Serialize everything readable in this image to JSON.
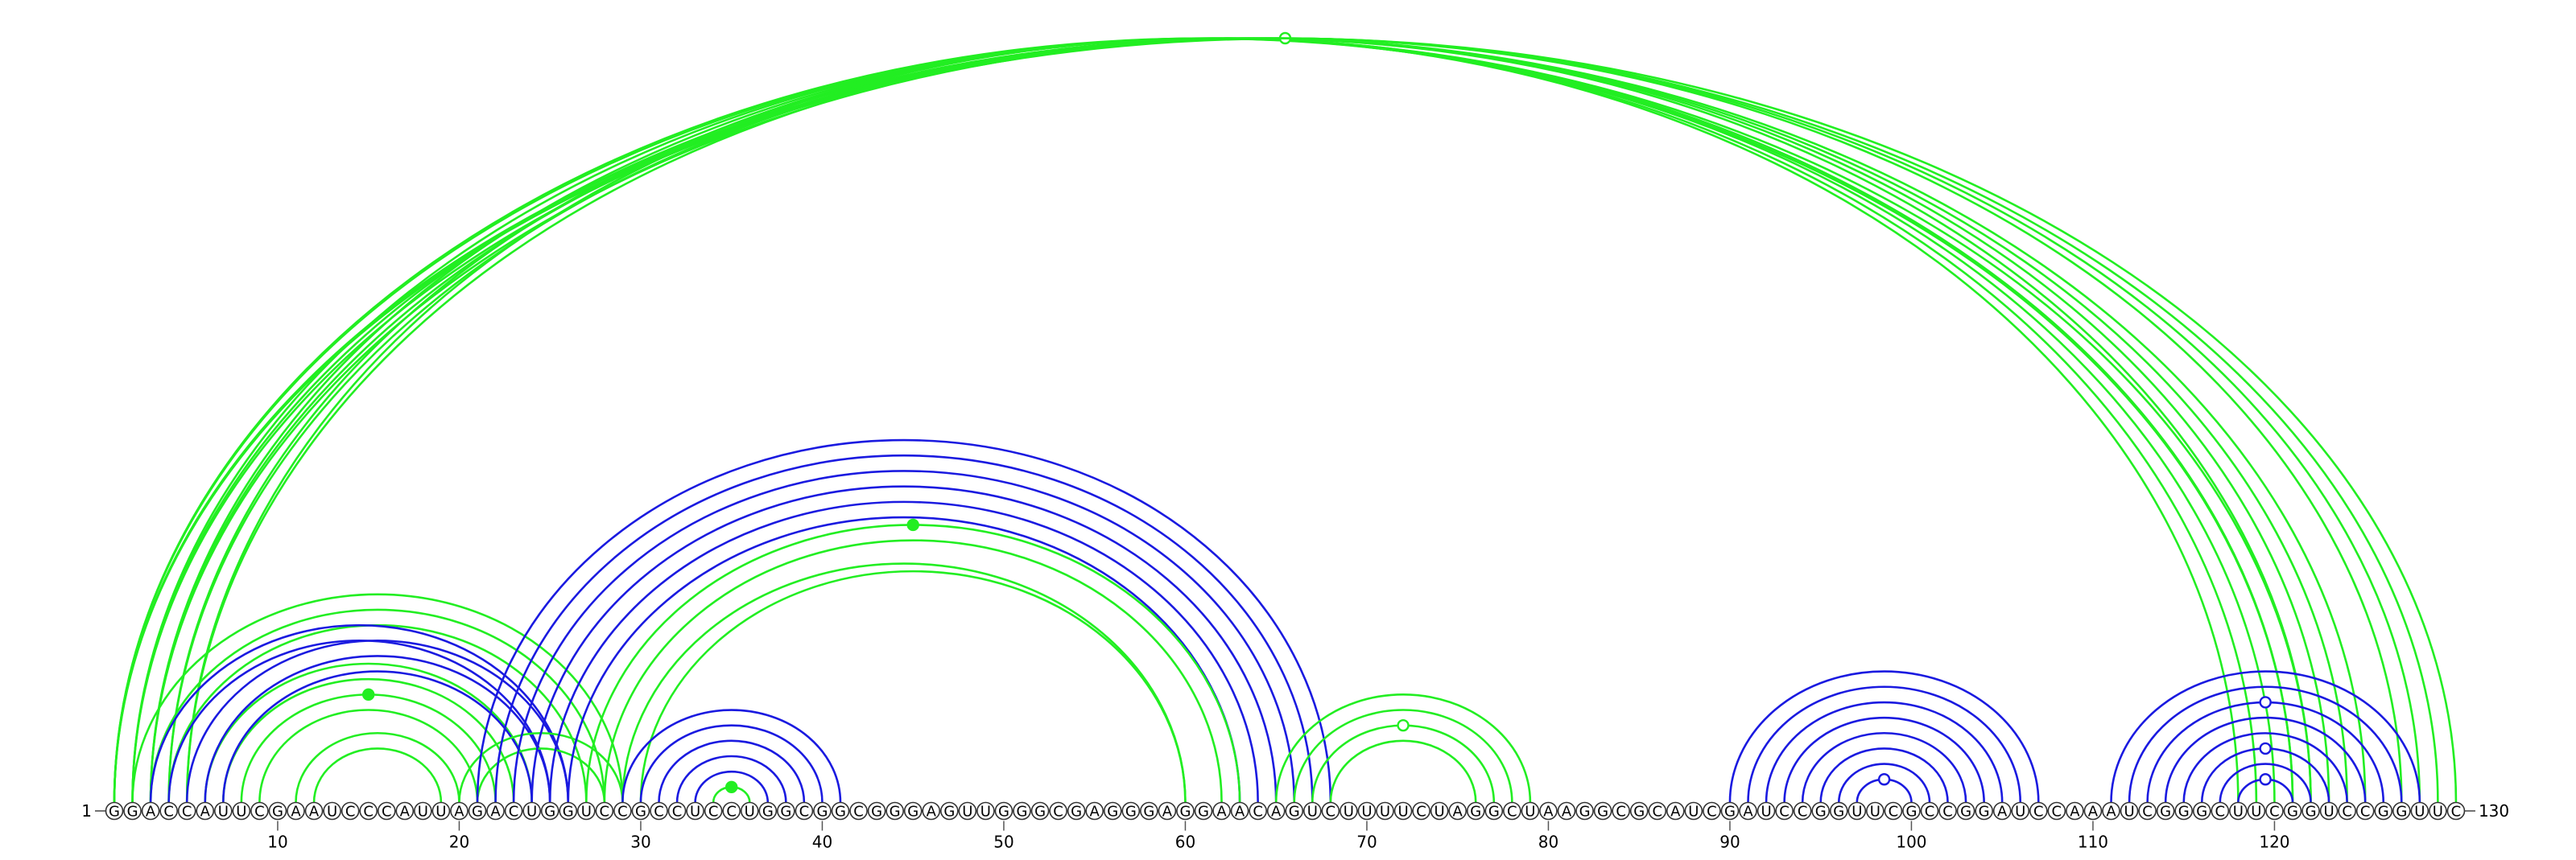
{
  "sequence": "GGACCAUUCGAAUCCCAUUAGACUGGUCCGCCUCCUGGCGGCGGGAGUUGGGCGAGGGAGGAACAGUCUUUUCUAGGCUAAGGCGCAUCGAUCCGGUUCGCCGGAUCCAAAUCGGGCUUCGGUCCGGUUC",
  "start_label": "1",
  "end_label": "130",
  "tick_labels": [
    10,
    20,
    30,
    40,
    50,
    60,
    70,
    80,
    90,
    100,
    110,
    120
  ],
  "colors": {
    "green": "#22ee22",
    "blue": "#1a1ae0",
    "nucleotide_fill": "#ffffff",
    "nucleotide_stroke": "#333333",
    "text": "#000000"
  },
  "arcs": [
    {
      "color": "green",
      "from": 1,
      "to": 121
    },
    {
      "color": "green",
      "from": 1,
      "to": 122
    },
    {
      "color": "green",
      "from": 2,
      "to": 121
    },
    {
      "color": "green",
      "from": 3,
      "to": 120
    },
    {
      "color": "green",
      "from": 4,
      "to": 119
    },
    {
      "color": "green",
      "from": 5,
      "to": 118
    },
    {
      "color": "green",
      "from": 2,
      "to": 125
    },
    {
      "color": "green",
      "from": 3,
      "to": 124
    },
    {
      "color": "green",
      "from": 4,
      "to": 123
    },
    {
      "color": "green",
      "from": 5,
      "to": 122
    },
    {
      "color": "green",
      "from": 1,
      "to": 130,
      "marker": "hollow"
    },
    {
      "color": "green",
      "from": 1,
      "to": 129
    },
    {
      "color": "green",
      "from": 2,
      "to": 128
    },
    {
      "color": "green",
      "from": 3,
      "to": 127
    },
    {
      "color": "green",
      "from": 2,
      "to": 29
    },
    {
      "color": "green",
      "from": 3,
      "to": 28
    },
    {
      "color": "green",
      "from": 4,
      "to": 27
    },
    {
      "color": "green",
      "from": 6,
      "to": 24
    },
    {
      "color": "green",
      "from": 7,
      "to": 23
    },
    {
      "color": "green",
      "from": 8,
      "to": 22,
      "marker": "filled"
    },
    {
      "color": "green",
      "from": 9,
      "to": 21
    },
    {
      "color": "green",
      "from": 11,
      "to": 20
    },
    {
      "color": "green",
      "from": 12,
      "to": 19
    },
    {
      "color": "blue",
      "from": 3,
      "to": 26
    },
    {
      "color": "blue",
      "from": 4,
      "to": 25
    },
    {
      "color": "blue",
      "from": 5,
      "to": 26
    },
    {
      "color": "blue",
      "from": 6,
      "to": 25
    },
    {
      "color": "blue",
      "from": 7,
      "to": 24
    },
    {
      "color": "green",
      "from": 20,
      "to": 29
    },
    {
      "color": "green",
      "from": 21,
      "to": 28
    },
    {
      "color": "blue",
      "from": 21,
      "to": 68
    },
    {
      "color": "blue",
      "from": 22,
      "to": 67
    },
    {
      "color": "blue",
      "from": 23,
      "to": 66
    },
    {
      "color": "blue",
      "from": 24,
      "to": 65
    },
    {
      "color": "blue",
      "from": 25,
      "to": 64
    },
    {
      "color": "blue",
      "from": 26,
      "to": 63
    },
    {
      "color": "green",
      "from": 27,
      "to": 63,
      "marker": "filled"
    },
    {
      "color": "green",
      "from": 28,
      "to": 62
    },
    {
      "color": "green",
      "from": 29,
      "to": 60
    },
    {
      "color": "green",
      "from": 30,
      "to": 60
    },
    {
      "color": "blue",
      "from": 29,
      "to": 41
    },
    {
      "color": "blue",
      "from": 30,
      "to": 40
    },
    {
      "color": "blue",
      "from": 31,
      "to": 39
    },
    {
      "color": "blue",
      "from": 32,
      "to": 38
    },
    {
      "color": "blue",
      "from": 33,
      "to": 37
    },
    {
      "color": "green",
      "from": 34,
      "to": 36,
      "marker": "filled"
    },
    {
      "color": "green",
      "from": 65,
      "to": 79
    },
    {
      "color": "green",
      "from": 66,
      "to": 78
    },
    {
      "color": "green",
      "from": 67,
      "to": 77,
      "marker": "hollow"
    },
    {
      "color": "green",
      "from": 68,
      "to": 76
    },
    {
      "color": "blue",
      "from": 90,
      "to": 107
    },
    {
      "color": "blue",
      "from": 91,
      "to": 106
    },
    {
      "color": "blue",
      "from": 92,
      "to": 105
    },
    {
      "color": "blue",
      "from": 93,
      "to": 104
    },
    {
      "color": "blue",
      "from": 94,
      "to": 103
    },
    {
      "color": "blue",
      "from": 95,
      "to": 102
    },
    {
      "color": "blue",
      "from": 96,
      "to": 101
    },
    {
      "color": "blue",
      "from": 97,
      "to": 100,
      "marker": "hollow"
    },
    {
      "color": "blue",
      "from": 111,
      "to": 128
    },
    {
      "color": "blue",
      "from": 112,
      "to": 127
    },
    {
      "color": "blue",
      "from": 113,
      "to": 126,
      "marker": "hollow"
    },
    {
      "color": "blue",
      "from": 114,
      "to": 125
    },
    {
      "color": "blue",
      "from": 115,
      "to": 124
    },
    {
      "color": "blue",
      "from": 116,
      "to": 123,
      "marker": "hollow"
    },
    {
      "color": "blue",
      "from": 117,
      "to": 122
    },
    {
      "color": "blue",
      "from": 118,
      "to": 121,
      "marker": "hollow"
    }
  ]
}
